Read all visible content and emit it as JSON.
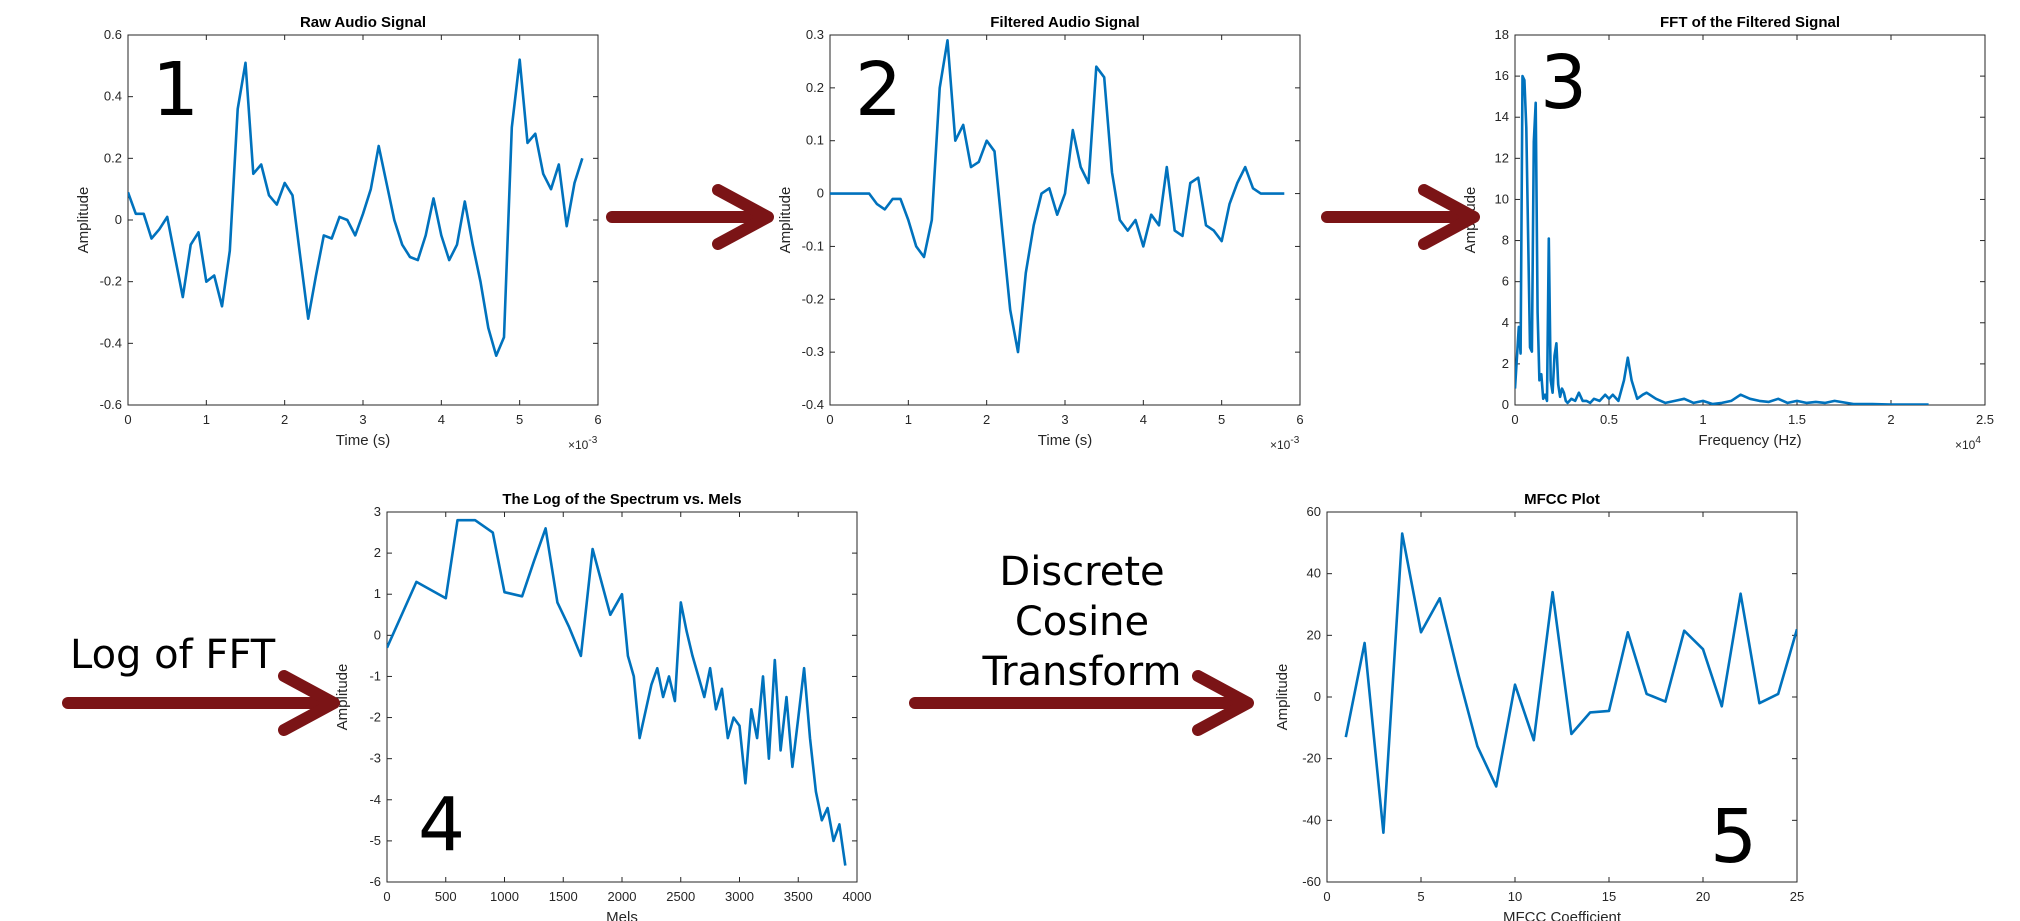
{
  "colors": {
    "line": "#0072BD",
    "arrow": "#7B1416",
    "axis": "#262626"
  },
  "steps": {
    "log_of_fft": "Log of FFT",
    "dct": [
      "Discrete",
      "Cosine",
      "Transform"
    ]
  },
  "chart_data": [
    {
      "type": "line",
      "number": "1",
      "title": "Raw Audio Signal",
      "xlabel": "Time (s)",
      "ylabel": "Amplitude",
      "xlim": [
        0,
        6
      ],
      "ylim": [
        -0.6,
        0.6
      ],
      "x_exponent": "-3",
      "xticks": [
        0,
        1,
        2,
        3,
        4,
        5,
        6
      ],
      "yticks": [
        -0.6,
        -0.4,
        -0.2,
        0,
        0.2,
        0.4,
        0.6
      ],
      "x": [
        0,
        0.1,
        0.2,
        0.3,
        0.4,
        0.5,
        0.6,
        0.7,
        0.8,
        0.9,
        1.0,
        1.1,
        1.2,
        1.3,
        1.4,
        1.5,
        1.6,
        1.7,
        1.8,
        1.9,
        2.0,
        2.1,
        2.2,
        2.3,
        2.4,
        2.5,
        2.6,
        2.7,
        2.8,
        2.9,
        3.0,
        3.1,
        3.2,
        3.3,
        3.4,
        3.5,
        3.6,
        3.7,
        3.8,
        3.9,
        4.0,
        4.1,
        4.2,
        4.3,
        4.4,
        4.5,
        4.6,
        4.7,
        4.8,
        4.9,
        5.0,
        5.1,
        5.2,
        5.3,
        5.4,
        5.5,
        5.6,
        5.7,
        5.8
      ],
      "y": [
        0.09,
        0.02,
        0.02,
        -0.06,
        -0.03,
        0.01,
        -0.12,
        -0.25,
        -0.08,
        -0.04,
        -0.2,
        -0.18,
        -0.28,
        -0.1,
        0.36,
        0.51,
        0.15,
        0.18,
        0.08,
        0.05,
        0.12,
        0.08,
        -0.12,
        -0.32,
        -0.18,
        -0.05,
        -0.06,
        0.01,
        0.0,
        -0.05,
        0.02,
        0.1,
        0.24,
        0.12,
        0.0,
        -0.08,
        -0.12,
        -0.13,
        -0.05,
        0.07,
        -0.05,
        -0.13,
        -0.08,
        0.06,
        -0.08,
        -0.2,
        -0.35,
        -0.44,
        -0.38,
        0.3,
        0.52,
        0.25,
        0.28,
        0.15,
        0.1,
        0.18,
        -0.02,
        0.12,
        0.2
      ]
    },
    {
      "type": "line",
      "number": "2",
      "title": "Filtered Audio Signal",
      "xlabel": "Time (s)",
      "ylabel": "Amplitude",
      "xlim": [
        0,
        6
      ],
      "ylim": [
        -0.4,
        0.3
      ],
      "x_exponent": "-3",
      "xticks": [
        0,
        1,
        2,
        3,
        4,
        5,
        6
      ],
      "yticks": [
        -0.4,
        -0.3,
        -0.2,
        -0.1,
        0,
        0.1,
        0.2,
        0.3
      ],
      "x": [
        0,
        0.1,
        0.2,
        0.3,
        0.4,
        0.5,
        0.6,
        0.7,
        0.8,
        0.9,
        1.0,
        1.1,
        1.2,
        1.3,
        1.4,
        1.5,
        1.6,
        1.7,
        1.8,
        1.9,
        2.0,
        2.1,
        2.2,
        2.3,
        2.4,
        2.5,
        2.6,
        2.7,
        2.8,
        2.9,
        3.0,
        3.1,
        3.2,
        3.3,
        3.4,
        3.5,
        3.6,
        3.7,
        3.8,
        3.9,
        4.0,
        4.1,
        4.2,
        4.3,
        4.4,
        4.5,
        4.6,
        4.7,
        4.8,
        4.9,
        5.0,
        5.1,
        5.2,
        5.3,
        5.4,
        5.5,
        5.6,
        5.7,
        5.8
      ],
      "y": [
        0.0,
        0.0,
        0.0,
        0.0,
        0.0,
        0.0,
        -0.02,
        -0.03,
        -0.01,
        -0.01,
        -0.05,
        -0.1,
        -0.12,
        -0.05,
        0.2,
        0.29,
        0.1,
        0.13,
        0.05,
        0.06,
        0.1,
        0.08,
        -0.07,
        -0.22,
        -0.3,
        -0.15,
        -0.06,
        0.0,
        0.01,
        -0.04,
        0.0,
        0.12,
        0.05,
        0.02,
        0.24,
        0.22,
        0.04,
        -0.05,
        -0.07,
        -0.05,
        -0.1,
        -0.04,
        -0.06,
        0.05,
        -0.07,
        -0.08,
        0.02,
        0.03,
        -0.06,
        -0.07,
        -0.09,
        -0.02,
        0.02,
        0.05,
        0.01,
        0.0,
        0.0,
        0.0,
        0.0
      ]
    },
    {
      "type": "line",
      "number": "3",
      "title": "FFT of the Filtered Signal",
      "xlabel": "Frequency (Hz)",
      "ylabel": "Amplitude",
      "xlim": [
        0,
        2.5
      ],
      "ylim": [
        0,
        18
      ],
      "x_exponent": "4",
      "xticks": [
        0,
        0.5,
        1,
        1.5,
        2,
        2.5
      ],
      "xticklabels": [
        "0",
        "0.5",
        "1",
        "1.5",
        "2",
        "2.5"
      ],
      "yticks": [
        0,
        2,
        4,
        6,
        8,
        10,
        12,
        14,
        16,
        18
      ],
      "x": [
        0,
        0.02,
        0.03,
        0.04,
        0.05,
        0.06,
        0.07,
        0.08,
        0.09,
        0.1,
        0.11,
        0.12,
        0.13,
        0.14,
        0.15,
        0.16,
        0.17,
        0.18,
        0.19,
        0.2,
        0.21,
        0.22,
        0.23,
        0.24,
        0.25,
        0.26,
        0.27,
        0.28,
        0.29,
        0.3,
        0.32,
        0.34,
        0.36,
        0.38,
        0.4,
        0.42,
        0.45,
        0.48,
        0.5,
        0.52,
        0.55,
        0.58,
        0.6,
        0.62,
        0.65,
        0.68,
        0.7,
        0.75,
        0.8,
        0.85,
        0.9,
        0.95,
        1.0,
        1.05,
        1.1,
        1.15,
        1.2,
        1.25,
        1.3,
        1.35,
        1.4,
        1.45,
        1.5,
        1.55,
        1.6,
        1.65,
        1.7,
        1.8,
        1.9,
        2.0,
        2.1,
        2.2
      ],
      "y": [
        0.8,
        3.8,
        2.5,
        16.0,
        15.8,
        13.5,
        8.0,
        2.8,
        2.6,
        12.8,
        14.7,
        4.5,
        1.2,
        1.5,
        0.3,
        0.5,
        0.2,
        8.1,
        1.2,
        0.6,
        2.4,
        3.0,
        1.0,
        0.4,
        0.8,
        0.6,
        0.2,
        0.1,
        0.2,
        0.3,
        0.2,
        0.6,
        0.2,
        0.2,
        0.1,
        0.3,
        0.2,
        0.5,
        0.3,
        0.5,
        0.2,
        1.2,
        2.3,
        1.2,
        0.3,
        0.5,
        0.6,
        0.3,
        0.1,
        0.2,
        0.3,
        0.1,
        0.2,
        0.05,
        0.1,
        0.2,
        0.5,
        0.3,
        0.2,
        0.15,
        0.3,
        0.1,
        0.2,
        0.1,
        0.15,
        0.1,
        0.2,
        0.05,
        0.05,
        0.02,
        0.02,
        0.02
      ]
    },
    {
      "type": "line",
      "number": "4",
      "title": "The Log of the Spectrum vs. Mels",
      "xlabel": "Mels",
      "ylabel": "Amplitude",
      "xlim": [
        0,
        4000
      ],
      "ylim": [
        -6,
        3
      ],
      "xticks": [
        0,
        500,
        1000,
        1500,
        2000,
        2500,
        3000,
        3500,
        4000
      ],
      "yticks": [
        -6,
        -5,
        -4,
        -3,
        -2,
        -1,
        0,
        1,
        2,
        3
      ],
      "x": [
        0,
        250,
        500,
        600,
        750,
        900,
        1000,
        1150,
        1250,
        1350,
        1450,
        1550,
        1650,
        1750,
        1900,
        2000,
        2050,
        2100,
        2150,
        2250,
        2300,
        2350,
        2400,
        2450,
        2500,
        2550,
        2600,
        2650,
        2700,
        2750,
        2800,
        2850,
        2900,
        2950,
        3000,
        3050,
        3100,
        3150,
        3200,
        3250,
        3300,
        3350,
        3400,
        3450,
        3500,
        3550,
        3600,
        3650,
        3700,
        3750,
        3800,
        3850,
        3900
      ],
      "y": [
        -0.3,
        1.3,
        0.9,
        2.8,
        2.8,
        2.5,
        1.05,
        0.95,
        1.8,
        2.6,
        0.8,
        0.2,
        -0.5,
        2.1,
        0.5,
        1.0,
        -0.5,
        -1.0,
        -2.5,
        -1.2,
        -0.8,
        -1.5,
        -1.0,
        -1.6,
        0.8,
        0.1,
        -0.5,
        -1.0,
        -1.5,
        -0.8,
        -1.8,
        -1.3,
        -2.5,
        -2.0,
        -2.2,
        -3.6,
        -1.8,
        -2.5,
        -1.0,
        -3.0,
        -0.6,
        -2.8,
        -1.5,
        -3.2,
        -2.0,
        -0.8,
        -2.5,
        -3.8,
        -4.5,
        -4.2,
        -5.0,
        -4.6,
        -5.6
      ]
    },
    {
      "type": "line",
      "number": "5",
      "title": "MFCC Plot",
      "xlabel": "MFCC Coefficient",
      "ylabel": "Amplitude",
      "xlim": [
        0,
        25
      ],
      "ylim": [
        -60,
        60
      ],
      "xticks": [
        0,
        5,
        10,
        15,
        20,
        25
      ],
      "yticks": [
        -60,
        -40,
        -20,
        0,
        20,
        40,
        60
      ],
      "x": [
        1,
        2,
        3,
        4,
        5,
        6,
        7,
        8,
        9,
        10,
        11,
        12,
        13,
        14,
        15,
        16,
        17,
        18,
        19,
        20,
        21,
        22,
        23,
        24,
        25
      ],
      "y": [
        -13,
        17.5,
        -44,
        53,
        21,
        32,
        7,
        -16,
        -29,
        4,
        -14,
        34,
        -12,
        -5,
        -4.5,
        21,
        1,
        -1.5,
        21.5,
        15.5,
        -3,
        33.5,
        -2,
        1,
        22
      ]
    }
  ]
}
